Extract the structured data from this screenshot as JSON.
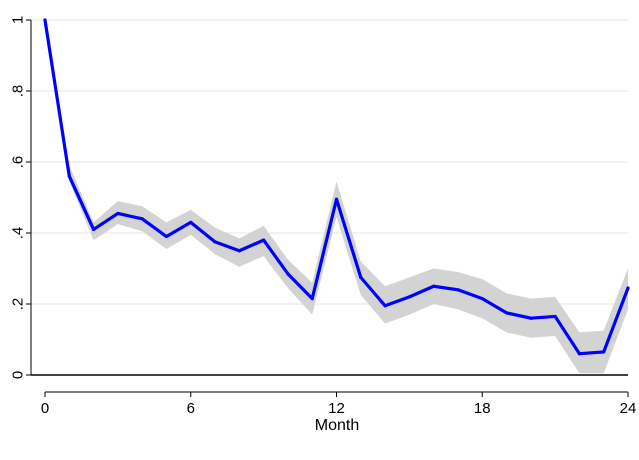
{
  "chart_data": {
    "type": "line",
    "title": "",
    "xlabel": "Month",
    "ylabel": "",
    "xlim": [
      0,
      24
    ],
    "ylim": [
      0,
      1
    ],
    "x_ticks": [
      0,
      6,
      12,
      18,
      24
    ],
    "x_tick_labels": [
      "0",
      "6",
      "12",
      "18",
      "24"
    ],
    "y_ticks": [
      0,
      0.2,
      0.4,
      0.6,
      0.8,
      1
    ],
    "y_tick_labels": [
      "0",
      ".2",
      ".4",
      ".6",
      ".8",
      "1"
    ],
    "grid": "horizontal",
    "legend": "none",
    "reference_line_y": 0,
    "colors": {
      "line": "#0000ff",
      "band": "#d3d3d3",
      "grid": "#e6e6e6",
      "reference": "#000000"
    },
    "series": [
      {
        "x": [
          0,
          1,
          2,
          3,
          4,
          5,
          6,
          7,
          8,
          9,
          10,
          11,
          12,
          13,
          14,
          15,
          16,
          17,
          18,
          19,
          20,
          21,
          22,
          23,
          24
        ],
        "values": [
          1.0,
          0.56,
          0.41,
          0.455,
          0.44,
          0.39,
          0.43,
          0.375,
          0.35,
          0.38,
          0.285,
          0.215,
          0.495,
          0.275,
          0.195,
          0.22,
          0.25,
          0.24,
          0.215,
          0.175,
          0.16,
          0.165,
          0.06,
          0.065,
          0.245
        ],
        "ci_lower": [
          1.0,
          0.545,
          0.38,
          0.425,
          0.405,
          0.355,
          0.395,
          0.34,
          0.305,
          0.335,
          0.245,
          0.17,
          0.445,
          0.225,
          0.145,
          0.17,
          0.2,
          0.185,
          0.16,
          0.12,
          0.105,
          0.11,
          0.005,
          0.005,
          0.185
        ],
        "ci_upper": [
          1.0,
          0.59,
          0.43,
          0.49,
          0.475,
          0.43,
          0.465,
          0.415,
          0.385,
          0.42,
          0.325,
          0.26,
          0.545,
          0.32,
          0.25,
          0.275,
          0.3,
          0.29,
          0.27,
          0.23,
          0.215,
          0.22,
          0.12,
          0.125,
          0.3
        ]
      }
    ]
  }
}
